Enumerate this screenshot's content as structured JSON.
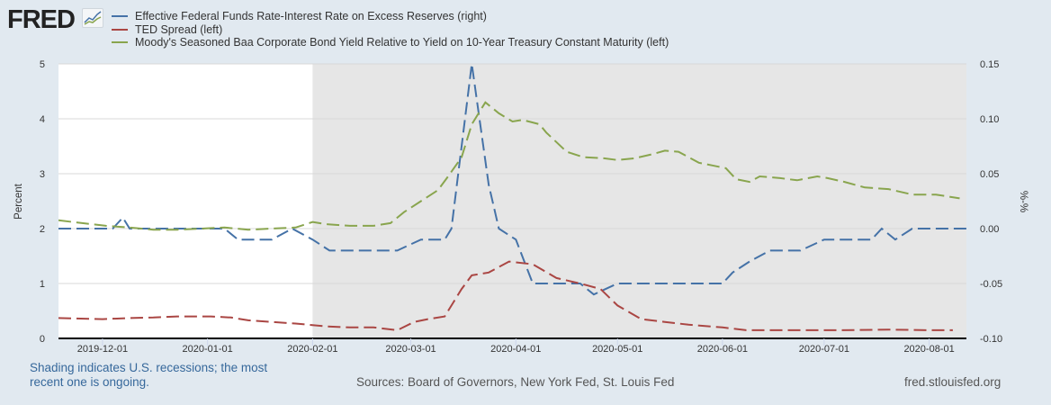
{
  "header": {
    "logo_text": "FRED",
    "logo_icon": "chart-line-icon"
  },
  "footer": {
    "recession_note": "Shading indicates U.S. recessions; the most recent one is ongoing.",
    "sources": "Sources: Board of Governors, New York Fed, St. Louis Fed",
    "site": "fred.stlouisfed.org"
  },
  "chart_data": {
    "type": "line",
    "title": "",
    "xlabel": "",
    "ylabel": "Percent",
    "ylabel_right": "%-%",
    "ylim": [
      0,
      5
    ],
    "ylim_right": [
      -0.1,
      0.15
    ],
    "xlim": [
      "2019-11-18",
      "2020-08-12"
    ],
    "yticks": [
      "0",
      "1",
      "2",
      "3",
      "4",
      "5"
    ],
    "yticks_right": [
      "-0.10",
      "-0.05",
      "0.00",
      "0.05",
      "0.10",
      "0.15"
    ],
    "xticks": [
      "2019-12-01",
      "2020-01-01",
      "2020-02-01",
      "2020-03-01",
      "2020-04-01",
      "2020-05-01",
      "2020-06-01",
      "2020-07-01",
      "2020-08-01"
    ],
    "grid": true,
    "legend_position": "top-left",
    "recession_shading": {
      "start": "2020-02-01",
      "end": "2020-08-12"
    },
    "series": [
      {
        "name": "Effective Federal Funds Rate-Interest Rate on Excess Reserves (right)",
        "axis": "right",
        "color": "#4572a7",
        "points": [
          [
            "2019-11-18",
            0.0
          ],
          [
            "2019-12-04",
            0.0
          ],
          [
            "2019-12-07",
            0.01
          ],
          [
            "2019-12-09",
            0.0
          ],
          [
            "2019-12-22",
            0.0
          ],
          [
            "2019-12-28",
            0.0
          ],
          [
            "2020-01-06",
            0.0
          ],
          [
            "2020-01-10",
            -0.01
          ],
          [
            "2020-01-20",
            -0.01
          ],
          [
            "2020-01-26",
            0.0
          ],
          [
            "2020-02-01",
            -0.01
          ],
          [
            "2020-02-06",
            -0.02
          ],
          [
            "2020-02-12",
            -0.02
          ],
          [
            "2020-02-19",
            -0.02
          ],
          [
            "2020-02-26",
            -0.02
          ],
          [
            "2020-03-04",
            -0.01
          ],
          [
            "2020-03-11",
            -0.01
          ],
          [
            "2020-03-13",
            0.0
          ],
          [
            "2020-03-19",
            0.15
          ],
          [
            "2020-03-24",
            0.04
          ],
          [
            "2020-03-27",
            0.0
          ],
          [
            "2020-04-01",
            -0.01
          ],
          [
            "2020-04-06",
            -0.05
          ],
          [
            "2020-04-20",
            -0.05
          ],
          [
            "2020-04-24",
            -0.06
          ],
          [
            "2020-05-01",
            -0.05
          ],
          [
            "2020-06-01",
            -0.05
          ],
          [
            "2020-06-04",
            -0.04
          ],
          [
            "2020-06-09",
            -0.03
          ],
          [
            "2020-06-15",
            -0.02
          ],
          [
            "2020-06-24",
            -0.02
          ],
          [
            "2020-07-01",
            -0.01
          ],
          [
            "2020-07-15",
            -0.01
          ],
          [
            "2020-07-18",
            0.0
          ],
          [
            "2020-07-22",
            -0.01
          ],
          [
            "2020-07-27",
            0.0
          ],
          [
            "2020-08-12",
            0.0
          ]
        ]
      },
      {
        "name": "TED Spread (left)",
        "axis": "left",
        "color": "#aa4643",
        "points": [
          [
            "2019-11-18",
            0.37
          ],
          [
            "2019-12-01",
            0.35
          ],
          [
            "2019-12-09",
            0.37
          ],
          [
            "2019-12-16",
            0.38
          ],
          [
            "2019-12-23",
            0.4
          ],
          [
            "2020-01-02",
            0.4
          ],
          [
            "2020-01-08",
            0.38
          ],
          [
            "2020-01-13",
            0.33
          ],
          [
            "2020-01-20",
            0.3
          ],
          [
            "2020-01-27",
            0.27
          ],
          [
            "2020-02-05",
            0.22
          ],
          [
            "2020-02-12",
            0.2
          ],
          [
            "2020-02-19",
            0.2
          ],
          [
            "2020-02-26",
            0.15
          ],
          [
            "2020-03-02",
            0.3
          ],
          [
            "2020-03-06",
            0.35
          ],
          [
            "2020-03-11",
            0.4
          ],
          [
            "2020-03-16",
            0.9
          ],
          [
            "2020-03-19",
            1.15
          ],
          [
            "2020-03-24",
            1.2
          ],
          [
            "2020-03-30",
            1.4
          ],
          [
            "2020-04-06",
            1.35
          ],
          [
            "2020-04-13",
            1.1
          ],
          [
            "2020-04-20",
            1.0
          ],
          [
            "2020-04-26",
            0.9
          ],
          [
            "2020-05-01",
            0.6
          ],
          [
            "2020-05-08",
            0.35
          ],
          [
            "2020-05-15",
            0.3
          ],
          [
            "2020-05-22",
            0.25
          ],
          [
            "2020-06-01",
            0.2
          ],
          [
            "2020-06-08",
            0.15
          ],
          [
            "2020-06-22",
            0.15
          ],
          [
            "2020-07-06",
            0.15
          ],
          [
            "2020-07-20",
            0.16
          ],
          [
            "2020-08-01",
            0.15
          ],
          [
            "2020-08-08",
            0.15
          ]
        ]
      },
      {
        "name": "Moody's Seasoned Baa Corporate Bond Yield Relative to Yield on 10-Year Treasury Constant Maturity (left)",
        "axis": "left",
        "color": "#89a54e",
        "points": [
          [
            "2019-11-18",
            2.15
          ],
          [
            "2019-11-25",
            2.1
          ],
          [
            "2019-12-02",
            2.05
          ],
          [
            "2019-12-09",
            2.02
          ],
          [
            "2019-12-16",
            1.98
          ],
          [
            "2019-12-23",
            1.98
          ],
          [
            "2019-12-30",
            2.0
          ],
          [
            "2020-01-06",
            2.02
          ],
          [
            "2020-01-13",
            1.98
          ],
          [
            "2020-01-20",
            2.0
          ],
          [
            "2020-01-27",
            2.02
          ],
          [
            "2020-02-01",
            2.12
          ],
          [
            "2020-02-05",
            2.08
          ],
          [
            "2020-02-12",
            2.05
          ],
          [
            "2020-02-19",
            2.05
          ],
          [
            "2020-02-24",
            2.1
          ],
          [
            "2020-02-28",
            2.3
          ],
          [
            "2020-03-04",
            2.5
          ],
          [
            "2020-03-09",
            2.7
          ],
          [
            "2020-03-12",
            2.95
          ],
          [
            "2020-03-16",
            3.3
          ],
          [
            "2020-03-19",
            3.9
          ],
          [
            "2020-03-23",
            4.3
          ],
          [
            "2020-03-27",
            4.1
          ],
          [
            "2020-03-31",
            3.95
          ],
          [
            "2020-04-03",
            3.98
          ],
          [
            "2020-04-08",
            3.9
          ],
          [
            "2020-04-10",
            3.75
          ],
          [
            "2020-04-16",
            3.4
          ],
          [
            "2020-04-21",
            3.3
          ],
          [
            "2020-04-27",
            3.28
          ],
          [
            "2020-05-01",
            3.25
          ],
          [
            "2020-05-06",
            3.28
          ],
          [
            "2020-05-11",
            3.35
          ],
          [
            "2020-05-15",
            3.42
          ],
          [
            "2020-05-19",
            3.4
          ],
          [
            "2020-05-25",
            3.2
          ],
          [
            "2020-05-29",
            3.15
          ],
          [
            "2020-06-02",
            3.1
          ],
          [
            "2020-06-05",
            2.9
          ],
          [
            "2020-06-09",
            2.85
          ],
          [
            "2020-06-12",
            2.95
          ],
          [
            "2020-06-18",
            2.92
          ],
          [
            "2020-06-23",
            2.88
          ],
          [
            "2020-06-29",
            2.95
          ],
          [
            "2020-07-02",
            2.92
          ],
          [
            "2020-07-07",
            2.85
          ],
          [
            "2020-07-13",
            2.75
          ],
          [
            "2020-07-20",
            2.72
          ],
          [
            "2020-07-27",
            2.62
          ],
          [
            "2020-08-03",
            2.62
          ],
          [
            "2020-08-10",
            2.55
          ]
        ]
      }
    ]
  }
}
